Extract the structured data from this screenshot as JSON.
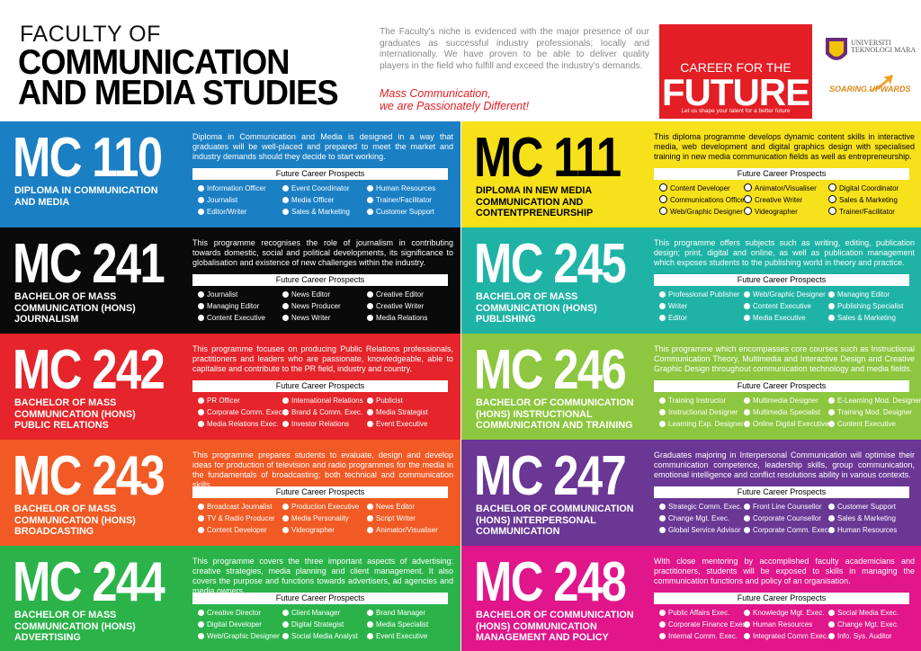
{
  "header": {
    "title_lines": [
      "FACULTY OF",
      "COMMUNICATION",
      "AND MEDIA STUDIES"
    ],
    "intro": "The Faculty's niche is evidenced with the major presence of our graduates as successful industry professionals; locally and internationally. We have proven to be able to deliver quality players in the field who fulfill and exceed the industry's demands.",
    "tagline_lines": [
      "Mass Communication,",
      "we are Passionately Different!"
    ],
    "career_box": {
      "line1": "CAREER FOR THE",
      "line2": "FUTURE",
      "caption": "Let us shape your talent for a better future"
    },
    "university": "UNIVERSITI TEKNOLOGI MARA",
    "slogan": "SOARING UPWARDS"
  },
  "prospects_heading": "Future Career Prospects",
  "programmes": [
    {
      "code": "MC 110",
      "name_lines": [
        "DIPLOMA IN COMMUNICATION",
        "AND MEDIA"
      ],
      "description": "Diploma in Communication and Media is designed in a way that graduates will be well-placed and prepared to meet the market and industry demands should they decide to start working.",
      "careers": [
        "Information Officer",
        "Event Coordinator",
        "Human Resources",
        "Journalist",
        "Media Officer",
        "Trainer/Facilitator",
        "Editor/Writer",
        "Sales & Marketing",
        "Customer Support"
      ]
    },
    {
      "code": "MC 111",
      "name_lines": [
        "DIPLOMA IN NEW MEDIA",
        "COMMUNICATION AND",
        "CONTENTPRENEURSHIP"
      ],
      "description": "This diploma programme develops dynamic content skills in interactive media, web development and digital graphics design with specialised training in new media communication fields as well as entrepreneurship.",
      "careers": [
        "Content Developer",
        "Animator/Visualiser",
        "Digital Coordinator",
        "Communications Officer",
        "Creative Writer",
        "Sales & Marketing",
        "Web/Graphic Designer",
        "Videographer",
        "Trainer/Facilitator"
      ]
    },
    {
      "code": "MC 241",
      "name_lines": [
        "BACHELOR OF MASS",
        "COMMUNICATION (HONS)",
        "JOURNALISM"
      ],
      "description": "This programme recognises the role of journalism in contributing towards domestic, social and political developments, its significance to globalisation and existence of new challenges within the industry.",
      "careers": [
        "Journalist",
        "News Editor",
        "Creative Editor",
        "Managing Editor",
        "News Producer",
        "Creative Writer",
        "Content Executive",
        "News Writer",
        "Media Relations"
      ]
    },
    {
      "code": "MC 245",
      "name_lines": [
        "BACHELOR OF MASS",
        "COMMUNICATION (HONS)",
        "PUBLISHING"
      ],
      "description": "This programme offers subjects such as writing, editing, publication design; print, digital and online, as well as publication management which exposes students to the publishing world in theory and practice.",
      "careers": [
        "Professional Publisher",
        "Web/Graphic Designer",
        "Managing Editor",
        "Writer",
        "Content Executive",
        "Publishing Specialist",
        "Editor",
        "Media Executive",
        "Sales & Marketing"
      ]
    },
    {
      "code": "MC 242",
      "name_lines": [
        "BACHELOR OF MASS",
        "COMMUNICATION (HONS)",
        "PUBLIC RELATIONS"
      ],
      "description": "This programme focuses on producing Public Relations professionals, practitioners and leaders who are passionate, knowledgeable, able to capitalise and contribute to the PR field, industry and country.",
      "careers": [
        "PR Officer",
        "International Relations",
        "Publicist",
        "Corporate Comm. Exec.",
        "Brand & Comm. Exec.",
        "Media Strategist",
        "Media Relations Exec.",
        "Investor Relations",
        "Event Executive"
      ]
    },
    {
      "code": "MC 246",
      "name_lines": [
        "BACHELOR OF COMMUNICATION",
        "(HONS) INSTRUCTIONAL",
        "COMMUNICATION AND TRAINING"
      ],
      "description": "This programme which encompasses core courses such as Instructional Communication Theory, Multimedia and Interactive Design and Creative Graphic Design throughout communication technology and media fields.",
      "careers": [
        "Training Instructor",
        "Multimedia Designer",
        "E-Learning Mod. Designer",
        "Instructional Designer",
        "Multimedia Specialist",
        "Training Mod. Designer",
        "Learning Exp. Designer",
        "Online Digital Executive",
        "Content Executive"
      ]
    },
    {
      "code": "MC 243",
      "name_lines": [
        "BACHELOR OF MASS",
        "COMMUNICATION (HONS)",
        "BROADCASTING"
      ],
      "description": "This programme prepares students to evaluate, design and develop ideas for production of television and radio programmes for the media in the fundamentals of broadcasting; both technical and communication skills.",
      "careers": [
        "Broadcast Journalist",
        "Production Executive",
        "News Editor",
        "TV & Radio Producer",
        "Media Personality",
        "Script Writer",
        "Content Developer",
        "Videographer",
        "Animator/Visualiser"
      ]
    },
    {
      "code": "MC 247",
      "name_lines": [
        "BACHELOR OF COMMUNICATION",
        "(HONS) INTERPERSONAL",
        "COMMUNICATION"
      ],
      "description": "Graduates majoring in Interpersonal Communication will optimise their communication competence, leadership skills, group communication, emotional intelligence and conflict resolutions ability in various contexts.",
      "careers": [
        "Strategic Comm. Exec.",
        "Front Line Counsellor",
        "Customer Support",
        "Change Mgt. Exec.",
        "Corporate Counsellor",
        "Sales & Marketing",
        "Global Service Advisor",
        "Corporate Comm. Exec.",
        "Human Resources"
      ]
    },
    {
      "code": "MC 244",
      "name_lines": [
        "BACHELOR OF MASS",
        "COMMUNICATION (HONS)",
        "ADVERTISING"
      ],
      "description": "This programme covers the three important aspects of advertising: creative strategies, media planning and client management. It also covers the purpose and functions towards advertisers, ad agencies and media owners.",
      "careers": [
        "Creative Director",
        "Client Manager",
        "Brand Manager",
        "Digital Developer",
        "Digital Strategist",
        "Media Specialist",
        "Web/Graphic Designer",
        "Social Media Analyst",
        "Event Executive"
      ]
    },
    {
      "code": "MC 248",
      "name_lines": [
        "BACHELOR OF COMMUNICATION",
        "(HONS) COMMUNICATION",
        "MANAGEMENT AND POLICY"
      ],
      "description": "With close mentoring by accomplished faculty academicians and practitioners, students will be exposed to skills in managing the communication functions and policy of an organisation.",
      "careers": [
        "Public Affairs Exec.",
        "Knowledge Mgt. Exec.",
        "Social Media Exec.",
        "Corporate Finance Exec.",
        "Human Resources",
        "Change Mgt. Exec.",
        "Internal Comm. Exec.",
        "Integrated Comm Exec.",
        "Info. Sys. Auditor"
      ]
    }
  ]
}
